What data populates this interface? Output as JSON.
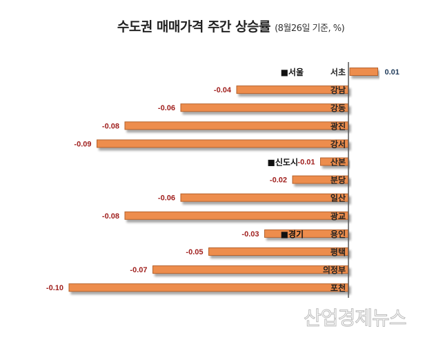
{
  "chart_data": {
    "type": "bar",
    "orientation": "horizontal",
    "title": "수도권 매매가격 주간 상승률",
    "subtitle": "(8월26일 기준, %)",
    "categories": [
      "서초",
      "강남",
      "강동",
      "광진",
      "강서",
      "산본",
      "분당",
      "일산",
      "광교",
      "용인",
      "평택",
      "의정부",
      "포천"
    ],
    "values": [
      0.01,
      -0.04,
      -0.06,
      -0.08,
      -0.09,
      -0.01,
      -0.02,
      -0.06,
      -0.08,
      -0.03,
      -0.05,
      -0.07,
      -0.1
    ],
    "value_labels": [
      "0.01",
      "-0.04",
      "-0.06",
      "-0.08",
      "-0.09",
      "-0.01",
      "-0.02",
      "-0.06",
      "-0.08",
      "-0.03",
      "-0.05",
      "-0.07",
      "-0.10"
    ],
    "groups": [
      {
        "label": "■서울",
        "start_index": 0
      },
      {
        "label": "■신도시",
        "start_index": 5
      },
      {
        "label": "■경기",
        "start_index": 9
      }
    ],
    "xlim": [
      -0.1,
      0.01
    ],
    "grid": false,
    "colors": {
      "bar": "#ED8D4E",
      "bar_border": "#B5612A",
      "negative_label": "#A0201E",
      "positive_label": "#1F3A5A"
    }
  },
  "watermark": "산업경제뉴스"
}
